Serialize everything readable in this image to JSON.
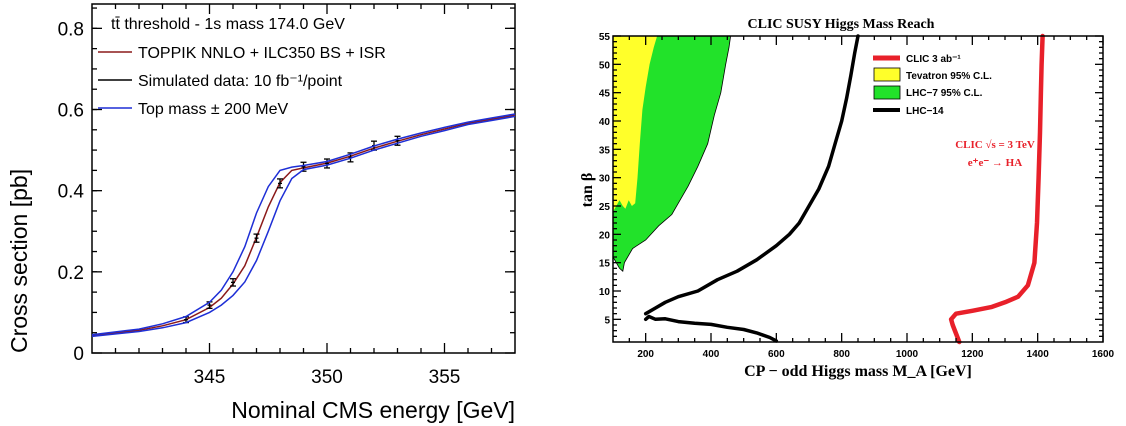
{
  "chart_data": [
    {
      "type": "line",
      "title": "",
      "xlabel": "Nominal CMS energy [GeV]",
      "ylabel": "Cross section [pb]",
      "xlim": [
        340,
        358
      ],
      "ylim": [
        0,
        0.86
      ],
      "x_ticks": [
        345,
        350,
        355
      ],
      "y_ticks": [
        0,
        0.2,
        0.4,
        0.6,
        0.8
      ],
      "legend_header": "tt̄ threshold - 1s mass 174.0 GeV",
      "legend_position": "top-left",
      "series": [
        {
          "name": "TOPPIK NNLO + ILC350 BS + ISR",
          "color": "#8b1a1a",
          "x": [
            340,
            342,
            343,
            344,
            345,
            345.5,
            346,
            346.5,
            347,
            347.5,
            348,
            348.5,
            349,
            350,
            351,
            352,
            353,
            354,
            355,
            356,
            357,
            358
          ],
          "y": [
            0.043,
            0.056,
            0.067,
            0.082,
            0.112,
            0.135,
            0.17,
            0.215,
            0.285,
            0.36,
            0.42,
            0.45,
            0.456,
            0.468,
            0.485,
            0.505,
            0.522,
            0.538,
            0.552,
            0.566,
            0.576,
            0.586
          ]
        },
        {
          "name": "Simulated data: 10 fb⁻¹/point",
          "color": "#000000",
          "x": [
            344,
            345,
            346,
            347,
            348,
            349,
            350,
            351,
            352,
            353
          ],
          "y": [
            0.082,
            0.118,
            0.174,
            0.283,
            0.418,
            0.459,
            0.467,
            0.482,
            0.511,
            0.523
          ],
          "yerr": [
            0.007,
            0.008,
            0.009,
            0.01,
            0.011,
            0.011,
            0.011,
            0.011,
            0.011,
            0.011
          ]
        },
        {
          "name": "Top mass ± 200 MeV",
          "color": "#1e2fd6",
          "x": [
            340,
            342,
            343,
            344,
            345,
            345.5,
            346,
            346.5,
            347,
            347.5,
            348,
            348.5,
            349,
            350,
            351,
            352,
            353,
            354,
            355,
            356,
            357,
            358
          ],
          "y": [
            0.045,
            0.059,
            0.072,
            0.09,
            0.125,
            0.155,
            0.2,
            0.262,
            0.345,
            0.41,
            0.45,
            0.458,
            0.462,
            0.472,
            0.49,
            0.51,
            0.527,
            0.542,
            0.556,
            0.569,
            0.579,
            0.589
          ]
        },
        {
          "name": "",
          "color": "#1e2fd6",
          "x": [
            340,
            342,
            343,
            344,
            345,
            345.5,
            346,
            346.5,
            347,
            347.5,
            348,
            348.5,
            349,
            350,
            351,
            352,
            353,
            354,
            355,
            356,
            357,
            358
          ],
          "y": [
            0.041,
            0.053,
            0.062,
            0.075,
            0.1,
            0.118,
            0.142,
            0.175,
            0.228,
            0.3,
            0.375,
            0.43,
            0.452,
            0.463,
            0.48,
            0.5,
            0.517,
            0.534,
            0.548,
            0.563,
            0.573,
            0.583
          ]
        }
      ]
    },
    {
      "type": "line",
      "title": "CLIC SUSY Higgs Mass Reach",
      "xlabel": "CP − odd Higgs mass M_A  [GeV]",
      "ylabel": "tan β",
      "xlim": [
        100,
        1600
      ],
      "ylim": [
        1,
        55
      ],
      "x_ticks": [
        200,
        400,
        600,
        800,
        1000,
        1200,
        1400,
        1600
      ],
      "y_ticks": [
        5,
        10,
        15,
        20,
        25,
        30,
        35,
        40,
        45,
        50,
        55
      ],
      "legend_position": "top-center",
      "annotation": [
        "CLIC √s = 3 TeV",
        "e⁺e⁻ → HA"
      ],
      "series": [
        {
          "name": "CLIC 3 ab⁻¹",
          "color": "#e8202a",
          "x": [
            1160,
            1150,
            1140,
            1135,
            1150,
            1200,
            1260,
            1300,
            1340,
            1370,
            1390,
            1398,
            1403,
            1407,
            1410,
            1412,
            1415
          ],
          "y": [
            1,
            2.5,
            4,
            5,
            6,
            6.5,
            7.2,
            8,
            9,
            11,
            15,
            22,
            30,
            38,
            45,
            50,
            55
          ]
        },
        {
          "name": "Tevatron 95% C.L.",
          "color": "#ffff2a",
          "x": [
            100,
            120,
            130,
            138,
            148,
            158,
            168,
            175,
            182,
            190,
            200,
            212,
            225,
            235,
            100
          ],
          "y": [
            24,
            26,
            25,
            24.5,
            26,
            25,
            25.5,
            30,
            36,
            42,
            46,
            50,
            53,
            55,
            55
          ]
        },
        {
          "name": "LHC−7 95% C.L.",
          "color": "#22e22a",
          "x": [
            100,
            120,
            130,
            135,
            160,
            200,
            240,
            280,
            300,
            330,
            360,
            390,
            410,
            430,
            445,
            455,
            460,
            100
          ],
          "y": [
            16,
            14,
            13.5,
            15,
            17.5,
            19,
            21.5,
            23.5,
            25.5,
            28.5,
            32,
            36,
            41,
            45,
            50,
            53,
            55,
            55
          ]
        },
        {
          "name": "LHC−14",
          "color": "#000000",
          "x": [
            200,
            230,
            260,
            300,
            360,
            420,
            480,
            540,
            600,
            640,
            670,
            700,
            730,
            760,
            780,
            800,
            815,
            828,
            840,
            850
          ],
          "y": [
            6,
            7,
            8,
            9,
            10,
            12,
            13.5,
            15.5,
            18,
            20,
            22,
            25,
            28,
            32,
            36,
            40,
            44,
            48,
            52,
            55
          ]
        },
        {
          "name": "",
          "color": "#000000",
          "x": [
            200,
            210,
            230,
            260,
            300,
            350,
            400,
            450,
            500,
            540,
            580,
            600
          ],
          "y": [
            5,
            5.5,
            5,
            5.1,
            4.6,
            4.3,
            4.1,
            3.6,
            3.2,
            2.6,
            1.8,
            1.2
          ]
        }
      ]
    }
  ]
}
